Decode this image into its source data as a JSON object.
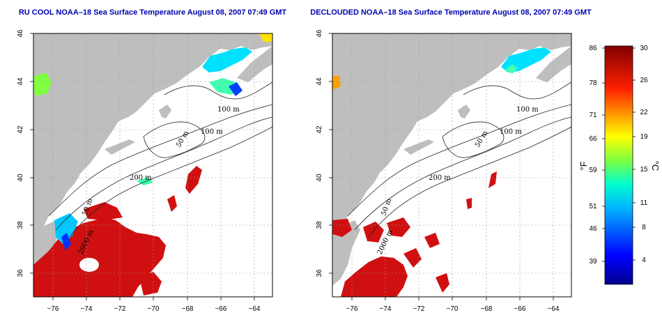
{
  "maps": [
    {
      "title": "RU COOL NOAA–18 Sea Surface Temperature August 08, 2007 07:49 GMT",
      "contour_labels": [
        "100 m",
        "100 m",
        "50 m",
        "200 m",
        "50 m",
        "2000 m"
      ]
    },
    {
      "title": "DECLOUDED NOAA–18 Sea Surface Temperature August 08, 2007 07:49 GMT",
      "contour_labels": [
        "100 m",
        "100 m",
        "50 m",
        "200 m",
        "50 m",
        "2000 m"
      ]
    }
  ],
  "axes": {
    "lon_ticks": [
      "−76",
      "−74",
      "−72",
      "−70",
      "−68",
      "−66",
      "−64"
    ],
    "lat_ticks": [
      "46",
      "44",
      "42",
      "40",
      "38",
      "36"
    ]
  },
  "colorbar": {
    "fahrenheit_label": "°F",
    "celsius_label": "°C",
    "fahrenheit_ticks": [
      "86",
      "78",
      "71",
      "66",
      "59",
      "51",
      "46",
      "39"
    ],
    "celsius_ticks": [
      "30",
      "26",
      "22",
      "19",
      "15",
      "11",
      "8",
      "4"
    ]
  },
  "colors": {
    "land": "#bebebe",
    "warm": "#d01010",
    "cold": "#00e0ff",
    "cloud": "#ffffff"
  }
}
